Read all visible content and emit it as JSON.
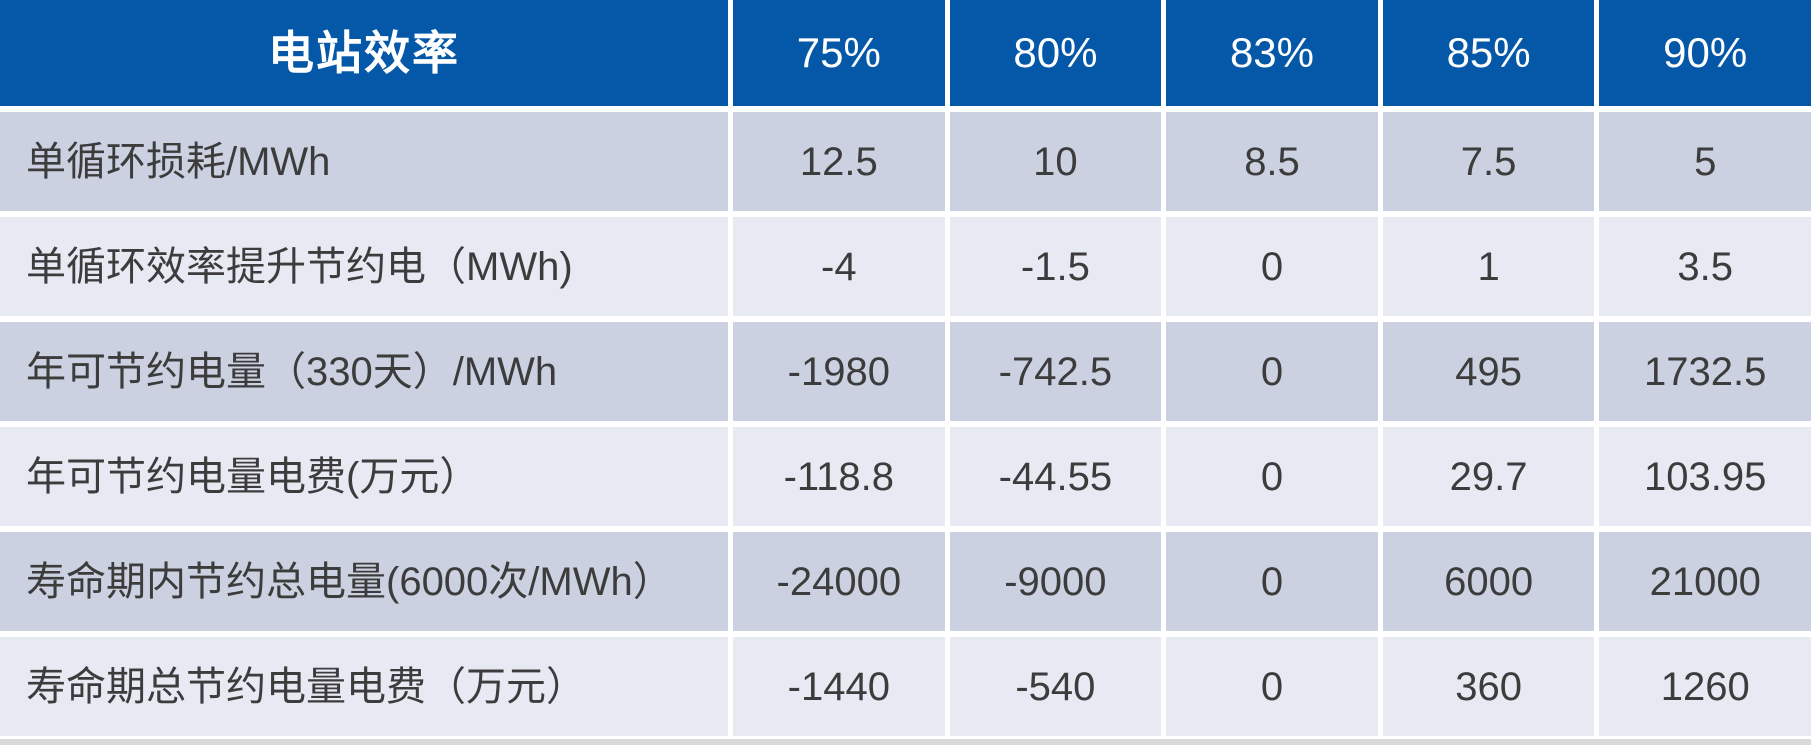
{
  "colors": {
    "header_bg": "#0458a7",
    "row_dark": "#cbd1e0",
    "row_light": "#e7e9f3",
    "text_dark": "#3c3c3c",
    "header_text": "#ffffff",
    "bottom_strip": "#d9d9d9"
  },
  "table": {
    "header": {
      "label": "电站效率",
      "columns": [
        "75%",
        "80%",
        "83%",
        "85%",
        "90%"
      ]
    },
    "rows": [
      {
        "label": "单循环损耗/MWh",
        "values": [
          "12.5",
          "10",
          "8.5",
          "7.5",
          "5"
        ]
      },
      {
        "label": "单循环效率提升节约电（MWh)",
        "values": [
          "-4",
          "-1.5",
          "0",
          "1",
          "3.5"
        ]
      },
      {
        "label": "年可节约电量（330天）/MWh",
        "values": [
          "-1980",
          "-742.5",
          "0",
          "495",
          "1732.5"
        ]
      },
      {
        "label": "年可节约电量电费(万元）",
        "values": [
          "-118.8",
          "-44.55",
          "0",
          "29.7",
          "103.95"
        ]
      },
      {
        "label": "寿命期内节约总电量(6000次/MWh）",
        "values": [
          "-24000",
          "-9000",
          "0",
          "6000",
          "21000"
        ]
      },
      {
        "label": "寿命期总节约电量电费（万元）",
        "values": [
          "-1440",
          "-540",
          "0",
          "360",
          "1260"
        ]
      }
    ]
  },
  "chart_data": {
    "type": "table",
    "title": "电站效率",
    "categories": [
      "75%",
      "80%",
      "83%",
      "85%",
      "90%"
    ],
    "series": [
      {
        "name": "单循环损耗/MWh",
        "values": [
          12.5,
          10,
          8.5,
          7.5,
          5
        ]
      },
      {
        "name": "单循环效率提升节约电（MWh)",
        "values": [
          -4,
          -1.5,
          0,
          1,
          3.5
        ]
      },
      {
        "name": "年可节约电量（330天）/MWh",
        "values": [
          -1980,
          -742.5,
          0,
          495,
          1732.5
        ]
      },
      {
        "name": "年可节约电量电费(万元）",
        "values": [
          -118.8,
          -44.55,
          0,
          29.7,
          103.95
        ]
      },
      {
        "name": "寿命期内节约总电量(6000次/MWh）",
        "values": [
          -24000,
          -9000,
          0,
          6000,
          21000
        ]
      },
      {
        "name": "寿命期总节约电量电费（万元）",
        "values": [
          -1440,
          -540,
          0,
          360,
          1260
        ]
      }
    ],
    "layout": {
      "header_fill": "#0458a7",
      "banding": "alternating-rows",
      "first_column_align": "left",
      "value_align": "center"
    }
  }
}
